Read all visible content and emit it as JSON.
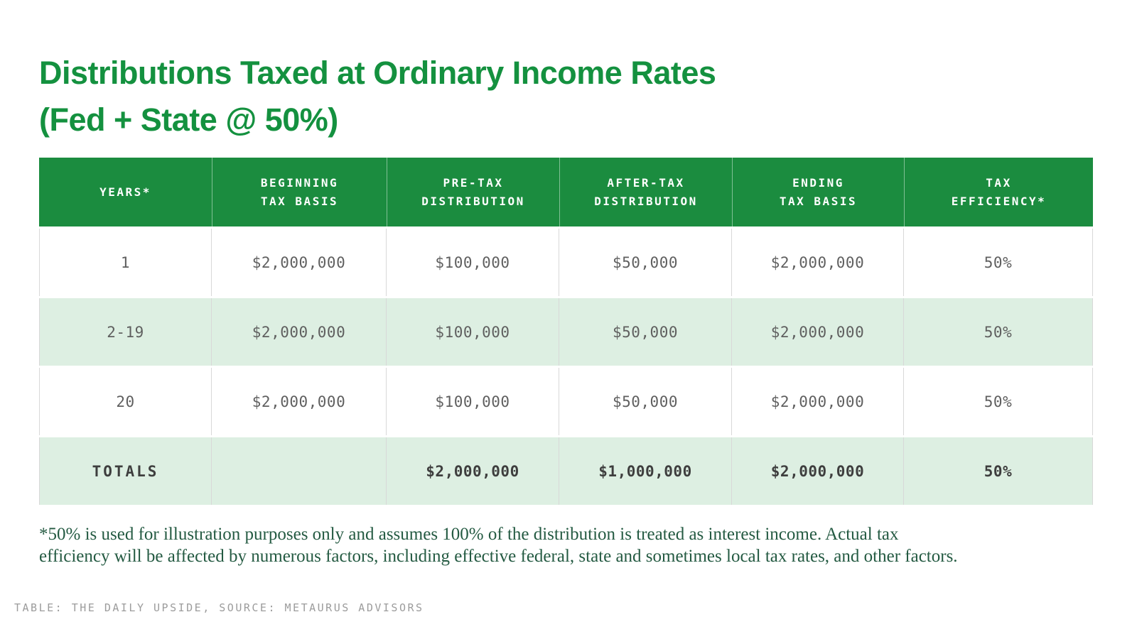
{
  "title": "Distributions Taxed at Ordinary Income Rates\n(Fed + State @ 50%)",
  "chart_data": {
    "type": "table",
    "title": "Distributions Taxed at Ordinary Income Rates (Fed + State @ 50%)",
    "columns": [
      "YEARS*",
      "BEGINNING\nTAX BASIS",
      "PRE-TAX\nDISTRIBUTION",
      "AFTER-TAX\nDISTRIBUTION",
      "ENDING\nTAX BASIS",
      "TAX\nEFFICIENCY*"
    ],
    "rows": [
      [
        "1",
        "$2,000,000",
        "$100,000",
        "$50,000",
        "$2,000,000",
        "50%"
      ],
      [
        "2-19",
        "$2,000,000",
        "$100,000",
        "$50,000",
        "$2,000,000",
        "50%"
      ],
      [
        "20",
        "$2,000,000",
        "$100,000",
        "$50,000",
        "$2,000,000",
        "50%"
      ]
    ],
    "totals_row": [
      "TOTALS",
      "",
      "$2,000,000",
      "$1,000,000",
      "$2,000,000",
      "50%"
    ]
  },
  "footnote": "*50% is used for illustration purposes only and assumes 100% of the distribution is treated as interest income. Actual tax\nefficiency will be affected by numerous factors, including effective federal, state and sometimes local tax rates, and other factors.",
  "credit": "TABLE: THE DAILY UPSIDE, SOURCE: METAURUS ADVISORS",
  "colors": {
    "title_green": "#14913f",
    "header_green": "#1b8c3f",
    "row_tint_green": "#ddefe2",
    "body_text_gray": "#5f5f5f",
    "totals_text": "#3e3e3e",
    "footnote_green": "#245a42",
    "credit_gray": "#9c9c9c",
    "grid_line": "#d8d8d8"
  }
}
